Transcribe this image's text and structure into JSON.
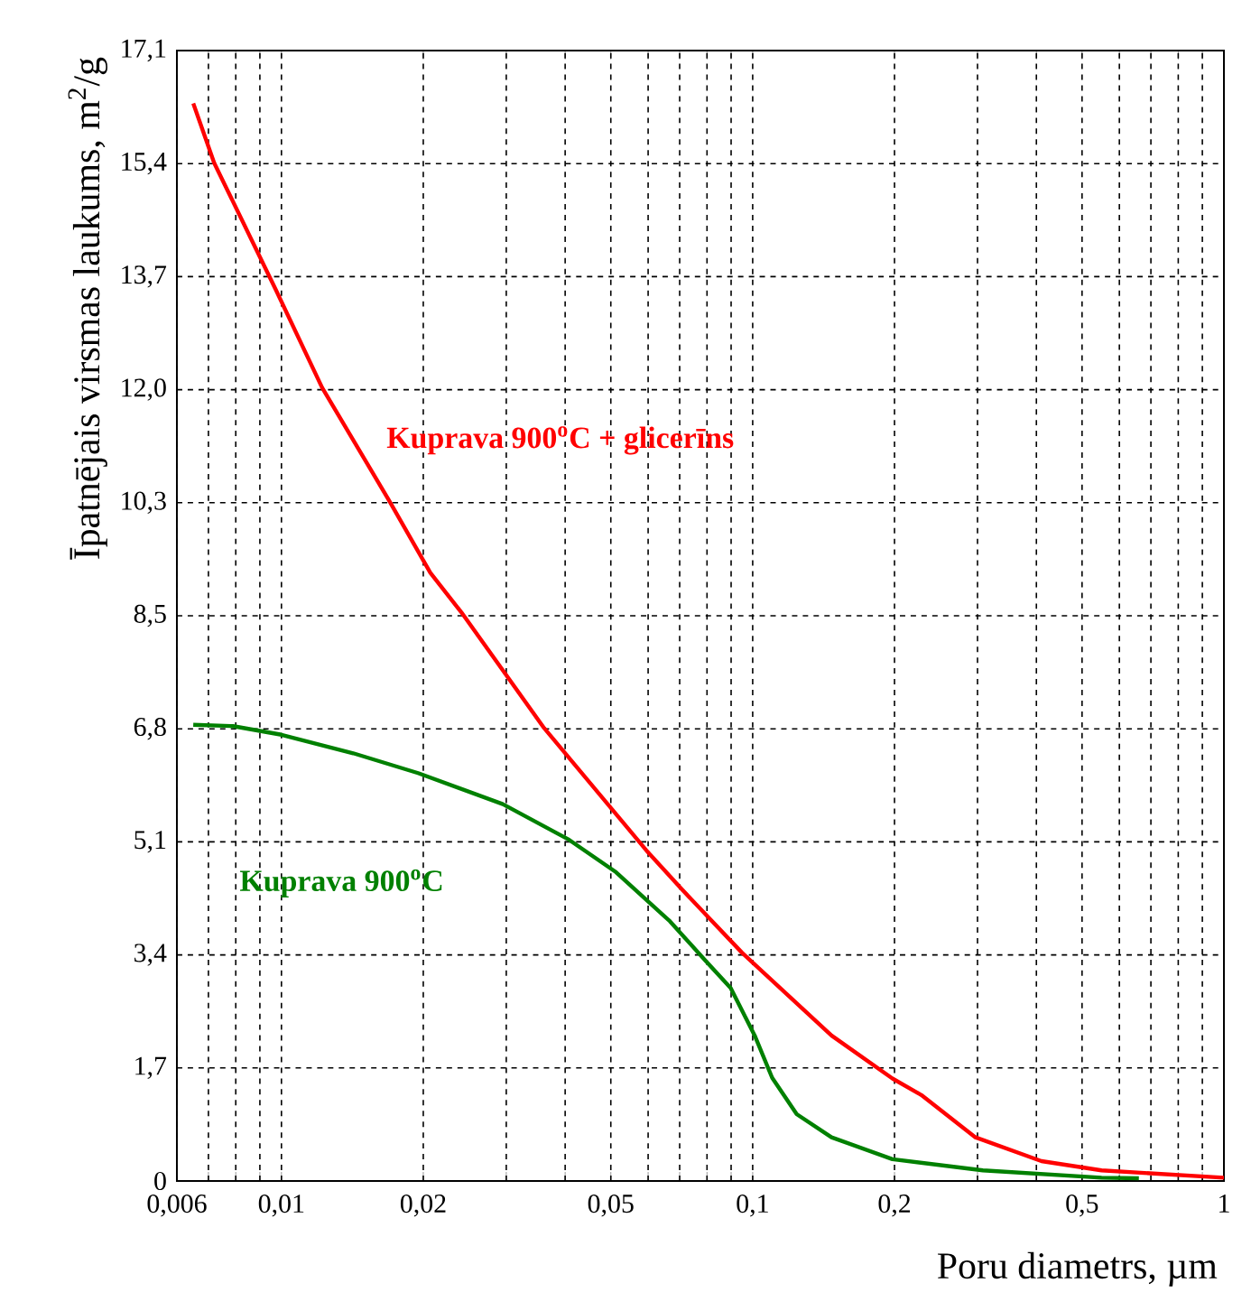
{
  "chart_data": {
    "type": "line",
    "xlabel": "Poru diametrs, µm",
    "ylabel": "Īpatnējais virsmas laukums, m$^{2}$/g",
    "log": "x",
    "grid": true,
    "xlim": [
      0.006,
      1
    ],
    "ylim": [
      0,
      17.1
    ],
    "xticks": [
      {
        "value": 0.006,
        "label": "0,006"
      },
      {
        "value": 0.007,
        "label": null
      },
      {
        "value": 0.008,
        "label": null
      },
      {
        "value": 0.009,
        "label": null
      },
      {
        "value": 0.01,
        "label": "0,01"
      },
      {
        "value": 0.02,
        "label": "0,02"
      },
      {
        "value": 0.03,
        "label": null
      },
      {
        "value": 0.04,
        "label": null
      },
      {
        "value": 0.05,
        "label": "0,05"
      },
      {
        "value": 0.06,
        "label": null
      },
      {
        "value": 0.07,
        "label": null
      },
      {
        "value": 0.08,
        "label": null
      },
      {
        "value": 0.09,
        "label": null
      },
      {
        "value": 0.1,
        "label": "0,1"
      },
      {
        "value": 0.2,
        "label": "0,2"
      },
      {
        "value": 0.3,
        "label": null
      },
      {
        "value": 0.4,
        "label": null
      },
      {
        "value": 0.5,
        "label": "0,5"
      },
      {
        "value": 0.6,
        "label": null
      },
      {
        "value": 0.7,
        "label": null
      },
      {
        "value": 0.8,
        "label": null
      },
      {
        "value": 0.9,
        "label": null
      },
      {
        "value": 1,
        "label": "1"
      }
    ],
    "yticks": [
      0,
      {
        "value": 1.71,
        "label": "1,7"
      },
      {
        "value": 3.42,
        "label": "3,4"
      },
      {
        "value": 5.13,
        "label": "5,1"
      },
      {
        "value": 6.84,
        "label": "6,8"
      },
      {
        "value": 8.55,
        "label": "8,5"
      },
      {
        "value": 10.26,
        "label": "10,3"
      },
      {
        "value": 11.97,
        "label": "12,0"
      },
      {
        "value": 13.68,
        "label": "13,7"
      },
      {
        "value": 15.39,
        "label": "15,4"
      },
      {
        "value": 17.1,
        "label": "17,1"
      }
    ],
    "series": [
      {
        "name": "Kuprava 900$^{o}$C + glicerīns",
        "color": "#ff0000",
        "x": [
          0.0065,
          0.0072,
          0.0097,
          0.0122,
          0.0169,
          0.0207,
          0.0241,
          0.0361,
          0.0595,
          0.071,
          0.095,
          0.147,
          0.198,
          0.228,
          0.297,
          0.41,
          0.55,
          1
        ],
        "values": [
          16.3,
          15.4,
          13.5,
          12.0,
          10.3,
          9.2,
          8.6,
          6.85,
          5.0,
          4.4,
          3.45,
          2.2,
          1.55,
          1.3,
          0.66,
          0.3,
          0.16,
          0.05
        ]
      },
      {
        "name": "Kuprava 900$^{o}$C",
        "color": "#008000",
        "x": [
          0.0065,
          0.0079,
          0.01,
          0.0142,
          0.0195,
          0.0295,
          0.0408,
          0.0513,
          0.0667,
          0.0795,
          0.0898,
          0.101,
          0.11,
          0.124,
          0.147,
          0.198,
          0.308,
          0.55,
          0.66
        ],
        "values": [
          6.9,
          6.88,
          6.75,
          6.47,
          6.17,
          5.7,
          5.16,
          4.67,
          3.93,
          3.33,
          2.92,
          2.2,
          1.56,
          1.01,
          0.66,
          0.33,
          0.16,
          0.05,
          0.04
        ]
      }
    ]
  }
}
